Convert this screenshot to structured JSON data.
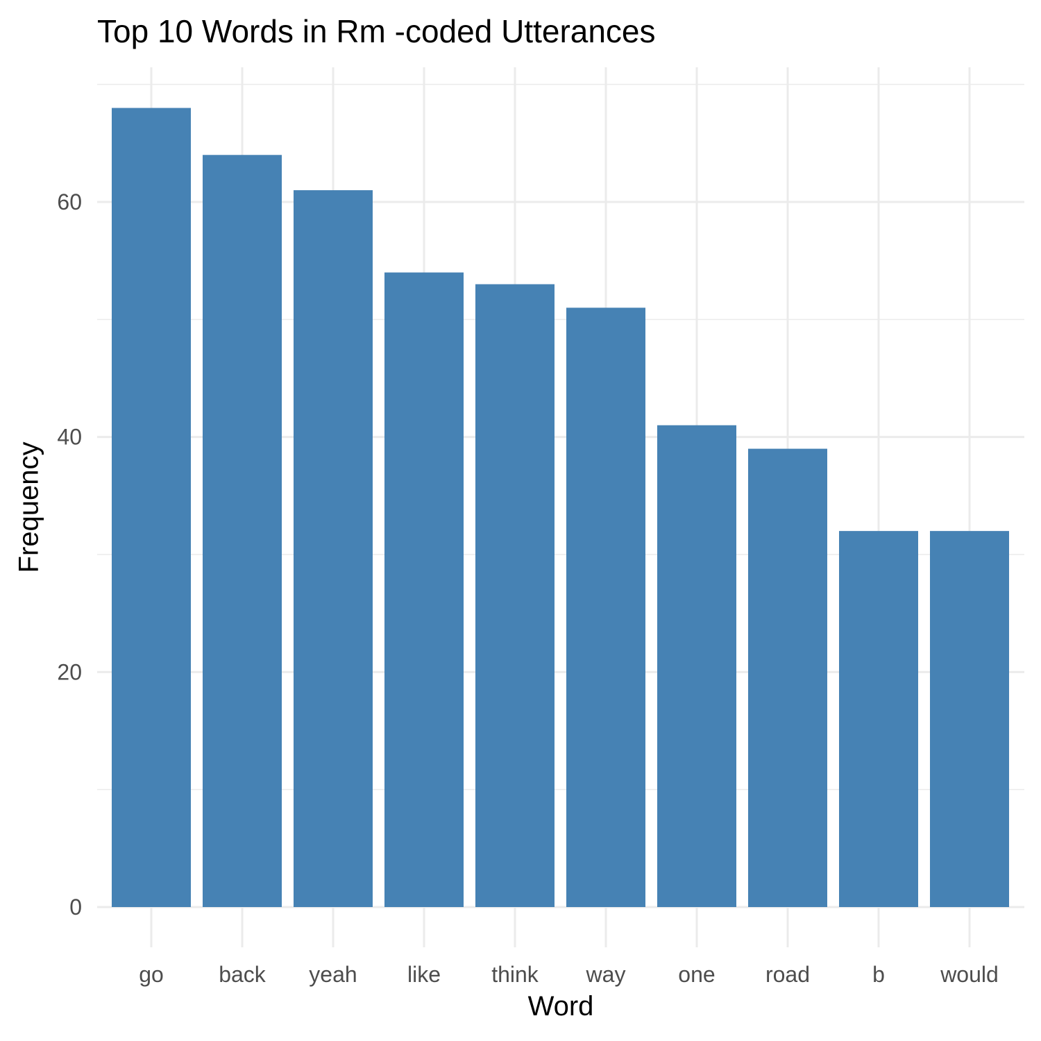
{
  "chart_data": {
    "type": "bar",
    "title": "Top 10 Words in Rm -coded Utterances",
    "xlabel": "Word",
    "ylabel": "Frequency",
    "categories": [
      "go",
      "back",
      "yeah",
      "like",
      "think",
      "way",
      "one",
      "road",
      "b",
      "would"
    ],
    "values": [
      68,
      64,
      61,
      54,
      53,
      51,
      41,
      39,
      32,
      32
    ],
    "ylim": [
      0,
      70
    ],
    "yticks": [
      0,
      20,
      40,
      60
    ],
    "grid": true,
    "legend": "none",
    "colors": {
      "bar": "#4682B4",
      "grid": "#EBEBEB",
      "tick_label": "#4D4D4D"
    }
  }
}
